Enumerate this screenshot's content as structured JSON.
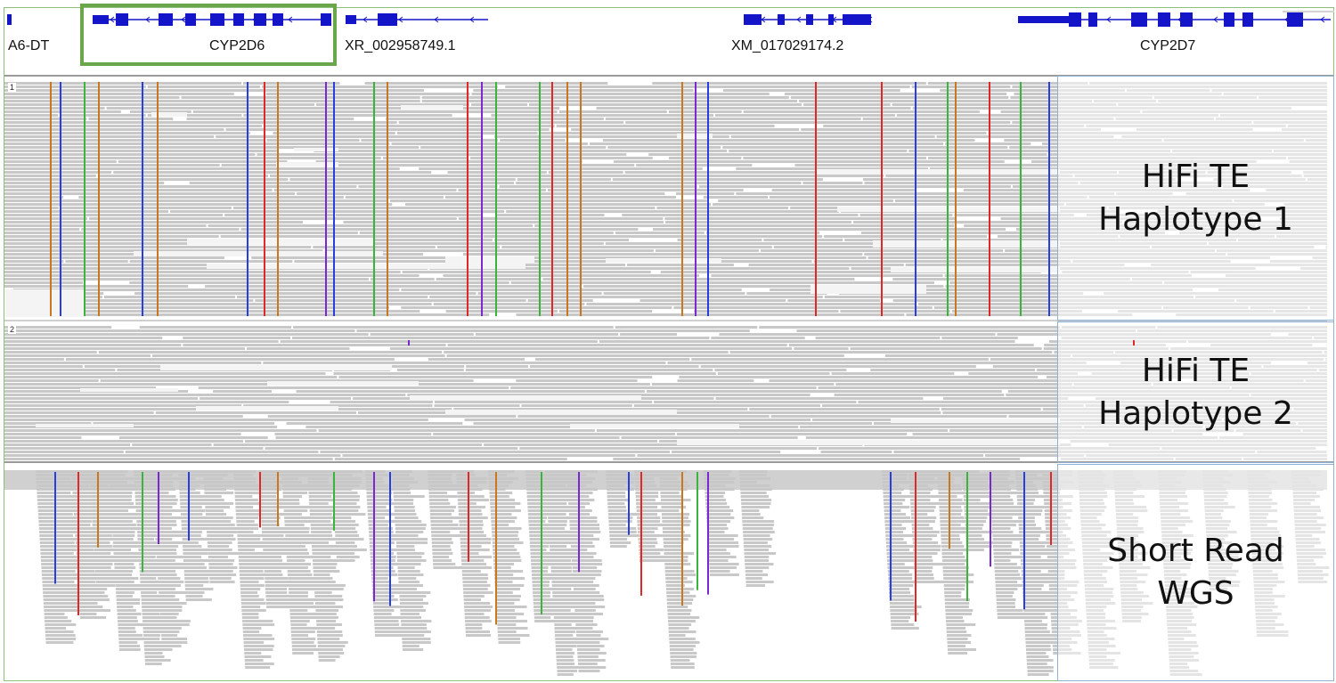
{
  "genes": {
    "labels": [
      "A6-DT",
      "CYP2D6",
      "XR_002958749.1",
      "XM_017029174.2",
      "CYP2D7"
    ]
  },
  "panels": {
    "hap1": {
      "number": "1",
      "label": "HiFi TE\nHaplotype 1"
    },
    "hap2": {
      "number": "2",
      "label": "HiFi TE\nHaplotype 2"
    },
    "wgs": {
      "label": "Short Read\nWGS"
    }
  },
  "colors": {
    "read": "#c8c8c8",
    "gene": "#1414c8",
    "highlight": "#6aa64a",
    "snv_a": "#3ab43a",
    "snv_c": "#2a3ee0",
    "snv_g": "#c8781e",
    "snv_t": "#e02828",
    "insertion": "#7a28d0",
    "box": "#8fb3d6"
  }
}
